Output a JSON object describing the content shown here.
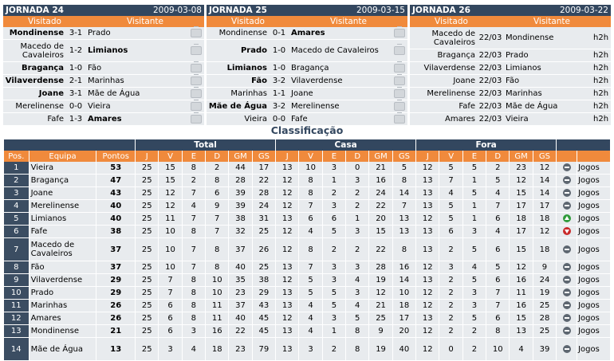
{
  "jornadas": [
    {
      "title": "JORNADA 24",
      "date": "2009-03-08",
      "home_header": "Visitado",
      "away_header": "Visitante",
      "games": [
        {
          "home": "Mondinense",
          "score": "3-1",
          "away": "Prado",
          "winner": "home",
          "tall": false
        },
        {
          "home": "Macedo de Cavaleiros",
          "score": "1-2",
          "away": "Limianos",
          "winner": "away",
          "tall": true
        },
        {
          "home": "Bragança",
          "score": "1-0",
          "away": "Fão",
          "winner": "home",
          "tall": false
        },
        {
          "home": "Vilaverdense",
          "score": "2-1",
          "away": "Marinhas",
          "winner": "home",
          "tall": false
        },
        {
          "home": "Joane",
          "score": "3-1",
          "away": "Mãe de Água",
          "winner": "home",
          "tall": false
        },
        {
          "home": "Merelinense",
          "score": "0-0",
          "away": "Vieira",
          "winner": "none",
          "tall": false
        },
        {
          "home": "Fafe",
          "score": "1-3",
          "away": "Amares",
          "winner": "away",
          "tall": false
        }
      ]
    },
    {
      "title": "JORNADA 25",
      "date": "2009-03-15",
      "home_header": "Visitado",
      "away_header": "Visitante",
      "games": [
        {
          "home": "Mondinense",
          "score": "0-1",
          "away": "Amares",
          "winner": "away",
          "tall": false
        },
        {
          "home": "Prado",
          "score": "1-0",
          "away": "Macedo de Cavaleiros",
          "winner": "home",
          "tall": true
        },
        {
          "home": "Limianos",
          "score": "1-0",
          "away": "Bragança",
          "winner": "home",
          "tall": false
        },
        {
          "home": "Fão",
          "score": "3-2",
          "away": "Vilaverdense",
          "winner": "home",
          "tall": false
        },
        {
          "home": "Marinhas",
          "score": "1-1",
          "away": "Joane",
          "winner": "none",
          "tall": false
        },
        {
          "home": "Mãe de Água",
          "score": "3-2",
          "away": "Merelinense",
          "winner": "home",
          "tall": false
        },
        {
          "home": "Vieira",
          "score": "0-0",
          "away": "Fafe",
          "winner": "none",
          "tall": false
        }
      ]
    },
    {
      "title": "JORNADA 26",
      "date": "2009-03-22",
      "home_header": "Visitado",
      "away_header": "Visitante",
      "games": [
        {
          "home": "Macedo de Cavaleiros",
          "score": "22/03",
          "away": "Mondinense",
          "link": "h2h",
          "tall": true
        },
        {
          "home": "Bragança",
          "score": "22/03",
          "away": "Prado",
          "link": "h2h",
          "tall": false
        },
        {
          "home": "Vilaverdense",
          "score": "22/03",
          "away": "Limianos",
          "link": "h2h",
          "tall": false
        },
        {
          "home": "Joane",
          "score": "22/03",
          "away": "Fão",
          "link": "h2h",
          "tall": false
        },
        {
          "home": "Merelinense",
          "score": "22/03",
          "away": "Marinhas",
          "link": "h2h",
          "tall": false
        },
        {
          "home": "Fafe",
          "score": "22/03",
          "away": "Mãe de Água",
          "link": "h2h",
          "tall": false
        },
        {
          "home": "Amares",
          "score": "22/03",
          "away": "Vieira",
          "link": "h2h",
          "tall": false
        }
      ]
    }
  ],
  "classification": {
    "title": "Classificação",
    "groups": {
      "total": "Total",
      "casa": "Casa",
      "fora": "Fora"
    },
    "headers": [
      "Pos.",
      "Equipa",
      "Pontos",
      "J",
      "V",
      "E",
      "D",
      "GM",
      "GS",
      "J",
      "V",
      "E",
      "D",
      "GM",
      "GS",
      "J",
      "V",
      "E",
      "D",
      "GM",
      "GS"
    ],
    "link_label": "Jogos",
    "rows": [
      {
        "pos": "1",
        "team": "Vieira",
        "pts": "53",
        "stats": [
          "25",
          "15",
          "8",
          "2",
          "44",
          "17",
          "13",
          "10",
          "3",
          "0",
          "21",
          "5",
          "12",
          "5",
          "5",
          "2",
          "23",
          "12"
        ],
        "trend": "same",
        "tall": false
      },
      {
        "pos": "2",
        "team": "Bragança",
        "pts": "47",
        "stats": [
          "25",
          "15",
          "2",
          "8",
          "28",
          "22",
          "12",
          "8",
          "1",
          "3",
          "16",
          "8",
          "13",
          "7",
          "1",
          "5",
          "12",
          "14"
        ],
        "trend": "same",
        "tall": false
      },
      {
        "pos": "3",
        "team": "Joane",
        "pts": "43",
        "stats": [
          "25",
          "12",
          "7",
          "6",
          "39",
          "28",
          "12",
          "8",
          "2",
          "2",
          "24",
          "14",
          "13",
          "4",
          "5",
          "4",
          "15",
          "14"
        ],
        "trend": "same",
        "tall": false
      },
      {
        "pos": "4",
        "team": "Merelinense",
        "pts": "40",
        "stats": [
          "25",
          "12",
          "4",
          "9",
          "39",
          "24",
          "12",
          "7",
          "3",
          "2",
          "22",
          "7",
          "13",
          "5",
          "1",
          "7",
          "17",
          "17"
        ],
        "trend": "same",
        "tall": false
      },
      {
        "pos": "5",
        "team": "Limianos",
        "pts": "40",
        "stats": [
          "25",
          "11",
          "7",
          "7",
          "38",
          "31",
          "13",
          "6",
          "6",
          "1",
          "20",
          "13",
          "12",
          "5",
          "1",
          "6",
          "18",
          "18"
        ],
        "trend": "up",
        "tall": false
      },
      {
        "pos": "6",
        "team": "Fafe",
        "pts": "38",
        "stats": [
          "25",
          "10",
          "8",
          "7",
          "32",
          "25",
          "12",
          "4",
          "5",
          "3",
          "15",
          "13",
          "13",
          "6",
          "3",
          "4",
          "17",
          "12"
        ],
        "trend": "down",
        "tall": false
      },
      {
        "pos": "7",
        "team": "Macedo de Cavaleiros",
        "pts": "37",
        "stats": [
          "25",
          "10",
          "7",
          "8",
          "37",
          "26",
          "12",
          "8",
          "2",
          "2",
          "22",
          "8",
          "13",
          "2",
          "5",
          "6",
          "15",
          "18"
        ],
        "trend": "same",
        "tall": true
      },
      {
        "pos": "8",
        "team": "Fão",
        "pts": "37",
        "stats": [
          "25",
          "10",
          "7",
          "8",
          "40",
          "25",
          "13",
          "7",
          "3",
          "3",
          "28",
          "16",
          "12",
          "3",
          "4",
          "5",
          "12",
          "9"
        ],
        "trend": "same",
        "tall": false
      },
      {
        "pos": "9",
        "team": "Vilaverdense",
        "pts": "29",
        "stats": [
          "25",
          "7",
          "8",
          "10",
          "35",
          "38",
          "12",
          "5",
          "3",
          "4",
          "19",
          "14",
          "13",
          "2",
          "5",
          "6",
          "16",
          "24"
        ],
        "trend": "same",
        "tall": false
      },
      {
        "pos": "10",
        "team": "Prado",
        "pts": "29",
        "stats": [
          "25",
          "7",
          "8",
          "10",
          "23",
          "29",
          "13",
          "5",
          "5",
          "3",
          "12",
          "10",
          "12",
          "2",
          "3",
          "7",
          "11",
          "19"
        ],
        "trend": "same",
        "tall": false
      },
      {
        "pos": "11",
        "team": "Marinhas",
        "pts": "26",
        "stats": [
          "25",
          "6",
          "8",
          "11",
          "37",
          "43",
          "13",
          "4",
          "5",
          "4",
          "21",
          "18",
          "12",
          "2",
          "3",
          "7",
          "16",
          "25"
        ],
        "trend": "same",
        "tall": false
      },
      {
        "pos": "12",
        "team": "Amares",
        "pts": "26",
        "stats": [
          "25",
          "6",
          "8",
          "11",
          "40",
          "45",
          "12",
          "4",
          "3",
          "5",
          "25",
          "17",
          "13",
          "2",
          "5",
          "6",
          "15",
          "28"
        ],
        "trend": "same",
        "tall": false
      },
      {
        "pos": "13",
        "team": "Mondinense",
        "pts": "21",
        "stats": [
          "25",
          "6",
          "3",
          "16",
          "22",
          "45",
          "13",
          "4",
          "1",
          "8",
          "9",
          "20",
          "12",
          "2",
          "2",
          "8",
          "13",
          "25"
        ],
        "trend": "same",
        "tall": false
      },
      {
        "pos": "14",
        "team": "Mãe de Água",
        "pts": "13",
        "stats": [
          "25",
          "3",
          "4",
          "18",
          "23",
          "79",
          "13",
          "3",
          "2",
          "8",
          "19",
          "40",
          "12",
          "0",
          "2",
          "10",
          "4",
          "39"
        ],
        "trend": "same",
        "tall": true
      }
    ]
  }
}
